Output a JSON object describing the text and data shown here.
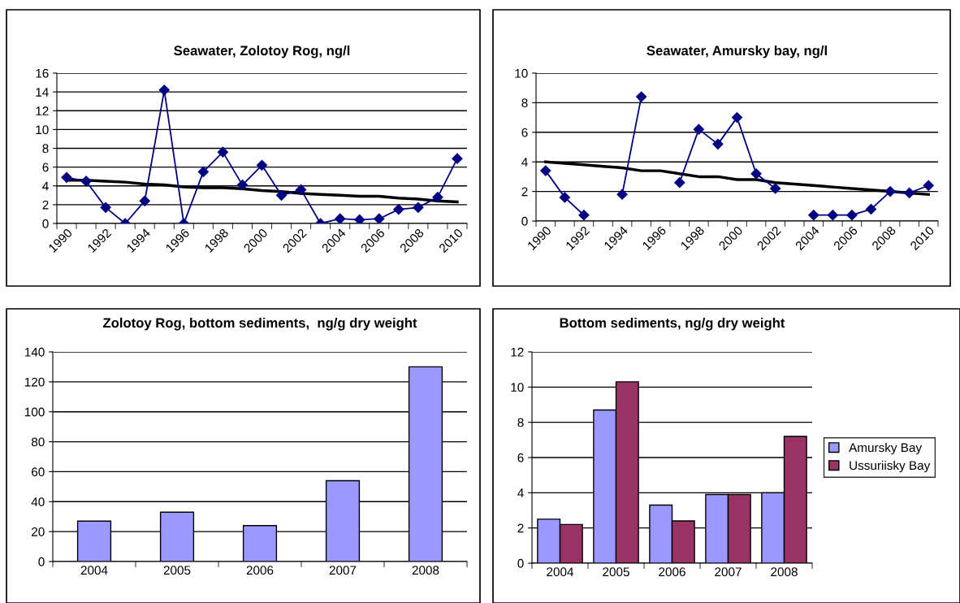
{
  "chart_data": [
    {
      "type": "line",
      "title": "Seawater, Zolotoy Rog, ng/l",
      "categories": [
        "1990",
        null,
        "1992",
        null,
        "1994",
        null,
        "1996",
        null,
        "1998",
        null,
        "2000",
        null,
        "2002",
        null,
        "2004",
        null,
        "2006",
        null,
        "2008",
        null,
        "2010"
      ],
      "ylim": [
        0,
        16
      ],
      "yticks": [
        0,
        2,
        4,
        6,
        8,
        10,
        12,
        14,
        16
      ],
      "grid": "y",
      "legend": false,
      "series": [
        {
          "color": "#000080",
          "marker": "diamond",
          "values": [
            4.9,
            4.5,
            1.7,
            0,
            2.4,
            14.2,
            0,
            5.5,
            7.6,
            4.1,
            6.2,
            3.0,
            3.6,
            0,
            0.5,
            0.4,
            0.5,
            1.5,
            1.7,
            2.8,
            6.9
          ]
        },
        {
          "color": "#000000",
          "marker": "none",
          "values": [
            4.6,
            4.6,
            4.5,
            4.4,
            4.2,
            4.1,
            3.9,
            3.8,
            3.8,
            3.7,
            3.5,
            3.4,
            3.2,
            3.1,
            3.0,
            2.9,
            2.9,
            2.7,
            2.6,
            2.4,
            2.3
          ]
        }
      ]
    },
    {
      "type": "line",
      "title": "Seawater, Amursky bay, ng/l",
      "categories": [
        "1990",
        null,
        "1992",
        null,
        "1994",
        null,
        "1996",
        null,
        "1998",
        null,
        "2000",
        null,
        "2002",
        null,
        "2004",
        null,
        "2006",
        null,
        "2008",
        null,
        "2010"
      ],
      "ylim": [
        0,
        10
      ],
      "yticks": [
        0,
        2,
        4,
        6,
        8,
        10
      ],
      "grid": "y",
      "legend": false,
      "series": [
        {
          "color": "#000080",
          "marker": "diamond",
          "values": [
            3.4,
            1.6,
            0.4,
            null,
            1.8,
            8.4,
            null,
            2.6,
            6.2,
            5.2,
            7.0,
            3.2,
            2.2,
            null,
            0.4,
            0.4,
            0.4,
            0.8,
            2.0,
            1.9,
            2.4
          ]
        },
        {
          "color": "#000000",
          "marker": "none",
          "values": [
            4.0,
            3.9,
            3.8,
            3.7,
            3.6,
            3.4,
            3.4,
            3.2,
            3.0,
            3.0,
            2.8,
            2.8,
            2.6,
            2.5,
            2.4,
            2.3,
            2.2,
            2.1,
            2.0,
            1.9,
            1.8
          ]
        }
      ]
    },
    {
      "type": "bar",
      "title": "Zolotoy Rog, bottom sediments,  ng/g dry weight",
      "categories": [
        "2004",
        "2005",
        "2006",
        "2007",
        "2008"
      ],
      "ylim": [
        0,
        140
      ],
      "yticks": [
        0,
        20,
        40,
        60,
        80,
        100,
        120,
        140
      ],
      "grid": "y",
      "legend": false,
      "series": [
        {
          "color": "#9999ff",
          "values": [
            27,
            33,
            24,
            54,
            130
          ]
        }
      ]
    },
    {
      "type": "bar",
      "title": "Bottom sediments, ng/g dry weight",
      "categories": [
        "2004",
        "2005",
        "2006",
        "2007",
        "2008"
      ],
      "ylim": [
        0,
        12
      ],
      "yticks": [
        0,
        2,
        4,
        6,
        8,
        10,
        12
      ],
      "grid": "y",
      "legend": "right",
      "series": [
        {
          "name": "Amursky Bay",
          "color": "#9999ff",
          "values": [
            2.5,
            8.7,
            3.3,
            3.9,
            4.0
          ]
        },
        {
          "name": "Ussuriisky Bay",
          "color": "#993366",
          "values": [
            2.2,
            10.3,
            2.4,
            3.9,
            7.2
          ]
        }
      ]
    }
  ]
}
